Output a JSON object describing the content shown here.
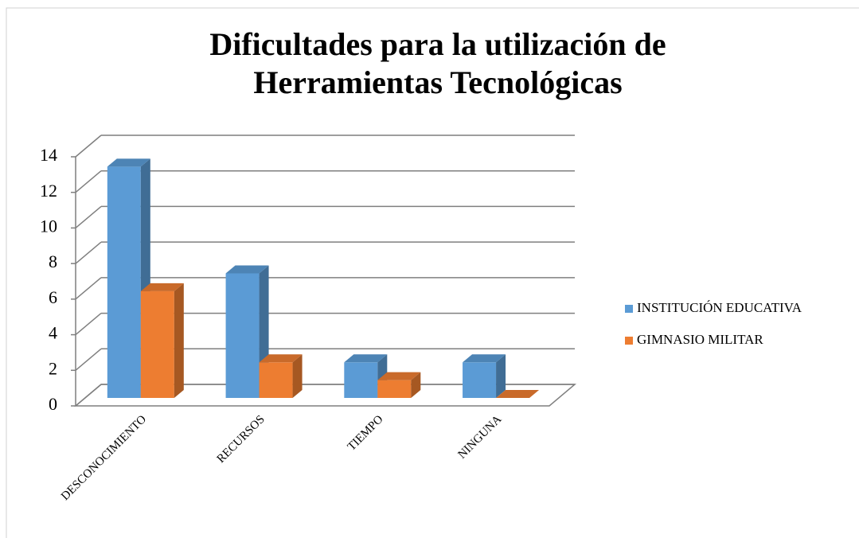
{
  "chart_data": {
    "type": "bar3d",
    "title": [
      "Dificultades para la utilización de",
      "Herramientas Tecnológicas"
    ],
    "categories": [
      "DESCONOCIMIENTO",
      "RECURSOS",
      "TIEMPO",
      "NINGUNA"
    ],
    "series": [
      {
        "name": "INSTITUCIÓN EDUCATIVA",
        "color": "#5b9bd5",
        "values": [
          13,
          7,
          2,
          2
        ]
      },
      {
        "name": "GIMNASIO MILITAR",
        "color": "#ed7d31",
        "values": [
          6,
          2,
          1,
          0
        ]
      }
    ],
    "ylim": [
      0,
      14
    ],
    "yticks": [
      0,
      2,
      4,
      6,
      8,
      10,
      12,
      14
    ],
    "grid": true,
    "legend": "right"
  }
}
